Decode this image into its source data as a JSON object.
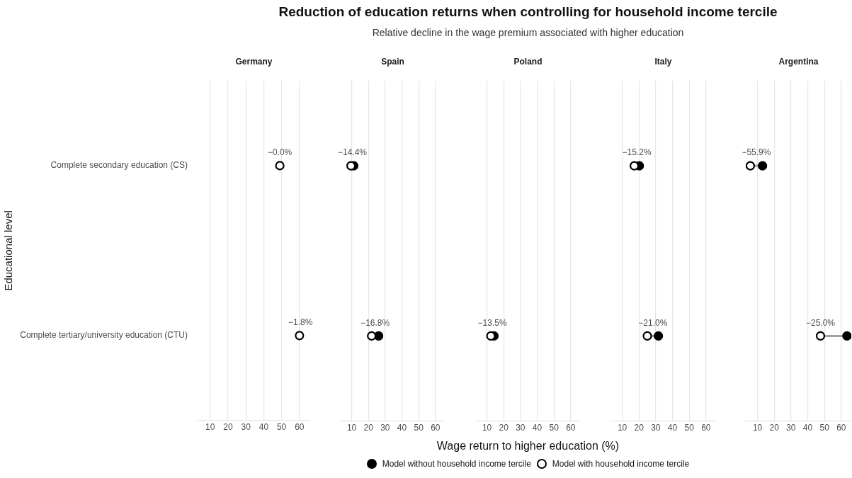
{
  "chart_data": [
    {
      "type": "other",
      "title": "Reduction of education returns when controlling for household income tercile",
      "subtitle": "Relative decline in the wage premium associated with higher education"
    },
    {
      "type": "scatter",
      "title": "Germany",
      "orientation": "horizontal",
      "ylabel": "Educational level",
      "legend": "bottom",
      "categories": [
        "Complete secondary education (CS)",
        "Complete tertiary/university education (CTU)"
      ],
      "series": [
        {
          "name": "Model without household income tercile",
          "color": "#000000",
          "values": [
            null,
            null
          ]
        },
        {
          "name": "Model with household income tercile",
          "color": "#ffffff",
          "values": [
            49,
            60
          ]
        }
      ],
      "xlim": [
        3,
        66
      ],
      "xticks": [
        10,
        20,
        30,
        40,
        50,
        60
      ],
      "grid": "x",
      "marker": "circle",
      "annotations": [
        {
          "text": "−0.0%",
          "x": 49,
          "y": "Complete secondary education (CS)"
        },
        {
          "text": "−1.8%",
          "x": 60.5,
          "y": "Complete tertiary/university education (CTU)"
        }
      ]
    },
    {
      "type": "scatter",
      "title": "Spain",
      "orientation": "horizontal",
      "tick_labels": "x",
      "categories": [
        "Complete secondary education (CS)",
        "Complete tertiary/university education (CTU)"
      ],
      "series": [
        {
          "color": "#000000",
          "values": [
            11.2,
            26.1
          ]
        },
        {
          "color": "#ffffff",
          "values": [
            9.6,
            21.9
          ]
        }
      ],
      "xlim": [
        3,
        66
      ],
      "xticks": [
        10,
        20,
        30,
        40,
        50,
        60
      ],
      "grid": "x",
      "marker": "circle",
      "annotations": [
        {
          "text": "−14.4%",
          "x": 10.4,
          "y": "Complete secondary education (CS)"
        },
        {
          "text": "−16.8%",
          "x": 24,
          "y": "Complete tertiary/university education (CTU)"
        }
      ]
    },
    {
      "type": "scatter",
      "title": "Poland",
      "orientation": "horizontal",
      "tick_labels": "x",
      "xlabel": "Wage return to higher education (%)",
      "categories": [
        "Complete secondary education (CS)",
        "Complete tertiary/university education (CTU)"
      ],
      "series": [
        {
          "color": "#000000",
          "values": [
            null,
            14.2
          ]
        },
        {
          "color": "#ffffff",
          "values": [
            null,
            12.3
          ]
        }
      ],
      "xlim": [
        3,
        66
      ],
      "xticks": [
        10,
        20,
        30,
        40,
        50,
        60
      ],
      "grid": "x",
      "marker": "circle",
      "annotations": [
        {
          "text": "−13.5%",
          "x": 13.2,
          "y": "Complete tertiary/university education (CTU)"
        }
      ]
    },
    {
      "type": "scatter",
      "title": "Italy",
      "orientation": "horizontal",
      "tick_labels": "x",
      "categories": [
        "Complete secondary education (CS)",
        "Complete tertiary/university education (CTU)"
      ],
      "series": [
        {
          "color": "#000000",
          "values": [
            20.2,
            31.6
          ]
        },
        {
          "color": "#ffffff",
          "values": [
            17.2,
            25
          ]
        }
      ],
      "xlim": [
        3,
        66
      ],
      "xticks": [
        10,
        20,
        30,
        40,
        50,
        60
      ],
      "grid": "x",
      "marker": "circle",
      "annotations": [
        {
          "text": "−15.2%",
          "x": 18.7,
          "y": "Complete secondary education (CS)"
        },
        {
          "text": "−21.0%",
          "x": 28.3,
          "y": "Complete tertiary/university education (CTU)"
        }
      ]
    },
    {
      "type": "scatter",
      "title": "Argentina",
      "orientation": "horizontal",
      "tick_labels": "x",
      "categories": [
        "Complete secondary education (CS)",
        "Complete tertiary/university education (CTU)"
      ],
      "series": [
        {
          "color": "#000000",
          "values": [
            13,
            63.4
          ]
        },
        {
          "color": "#ffffff",
          "values": [
            5.7,
            47.6
          ]
        }
      ],
      "xlim": [
        3,
        66
      ],
      "xticks": [
        10,
        20,
        30,
        40,
        50,
        60
      ],
      "grid": "x",
      "marker": "circle",
      "annotations": [
        {
          "text": "−55.9%",
          "x": 9.3,
          "y": "Complete secondary education (CS)"
        },
        {
          "text": "−25.0%",
          "x": 47.6,
          "y": "Complete tertiary/university education (CTU)"
        }
      ]
    }
  ]
}
